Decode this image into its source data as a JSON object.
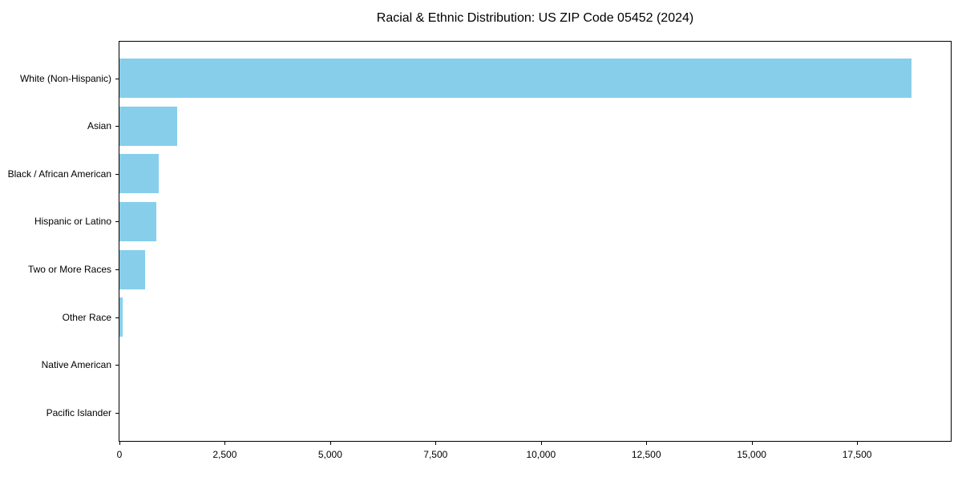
{
  "chart_data": {
    "type": "bar",
    "orientation": "horizontal",
    "title": "Racial & Ethnic Distribution: US ZIP Code 05452 (2024)",
    "categories": [
      "White (Non-Hispanic)",
      "Asian",
      "Black / African American",
      "Hispanic or Latino",
      "Two or More Races",
      "Other Race",
      "Native American",
      "Pacific Islander"
    ],
    "values": [
      18790,
      1370,
      925,
      870,
      600,
      75,
      0,
      0
    ],
    "xlabel": "",
    "ylabel": "",
    "xlim": [
      0,
      19724
    ],
    "xticks": [
      0,
      2500,
      5000,
      7500,
      10000,
      12500,
      15000,
      17500
    ],
    "xtick_labels": [
      "0",
      "2,500",
      "5,000",
      "7,500",
      "10,000",
      "12,500",
      "15,000",
      "17,500"
    ],
    "bar_color": "#87CEEB",
    "grid": false,
    "legend": false,
    "sort_order": "descending"
  },
  "colors": {
    "bar": "#87CEEB",
    "axis": "#000000",
    "text": "#000000",
    "background": "#ffffff"
  }
}
